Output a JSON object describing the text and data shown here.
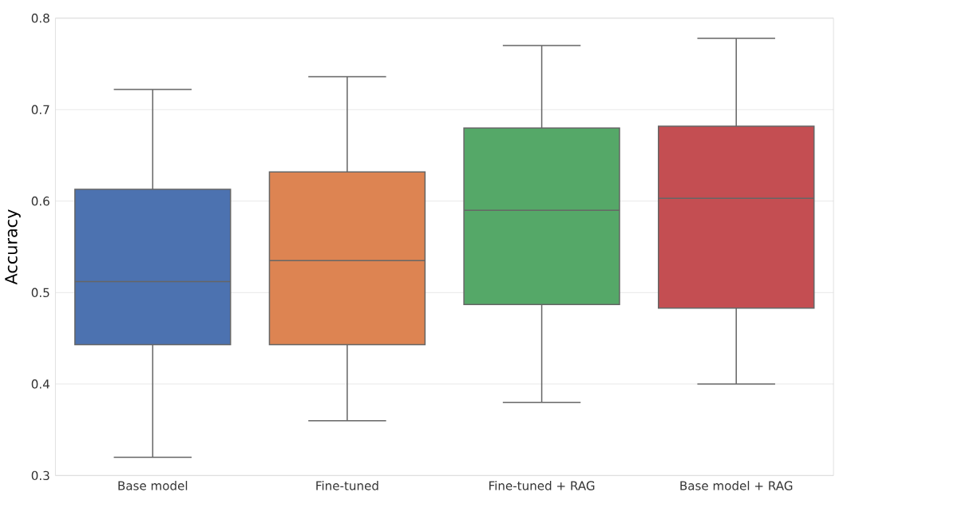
{
  "chart_data": {
    "type": "box",
    "ylabel": "Accuracy",
    "categories": [
      "Base model",
      "Fine-tuned",
      "Fine-tuned + RAG",
      "Base model + RAG"
    ],
    "colors": [
      "#4c72b0",
      "#dd8452",
      "#55a868",
      "#c44e52"
    ],
    "boxes": [
      {
        "low": 0.32,
        "q1": 0.443,
        "median": 0.512,
        "q3": 0.613,
        "high": 0.722
      },
      {
        "low": 0.36,
        "q1": 0.443,
        "median": 0.535,
        "q3": 0.632,
        "high": 0.736
      },
      {
        "low": 0.38,
        "q1": 0.487,
        "median": 0.59,
        "q3": 0.68,
        "high": 0.77
      },
      {
        "low": 0.4,
        "q1": 0.483,
        "median": 0.603,
        "q3": 0.682,
        "high": 0.778
      }
    ],
    "ylim": [
      0.3,
      0.8
    ],
    "yticks": [
      0.3,
      0.4,
      0.5,
      0.6,
      0.7,
      0.8
    ],
    "grid": "y"
  }
}
